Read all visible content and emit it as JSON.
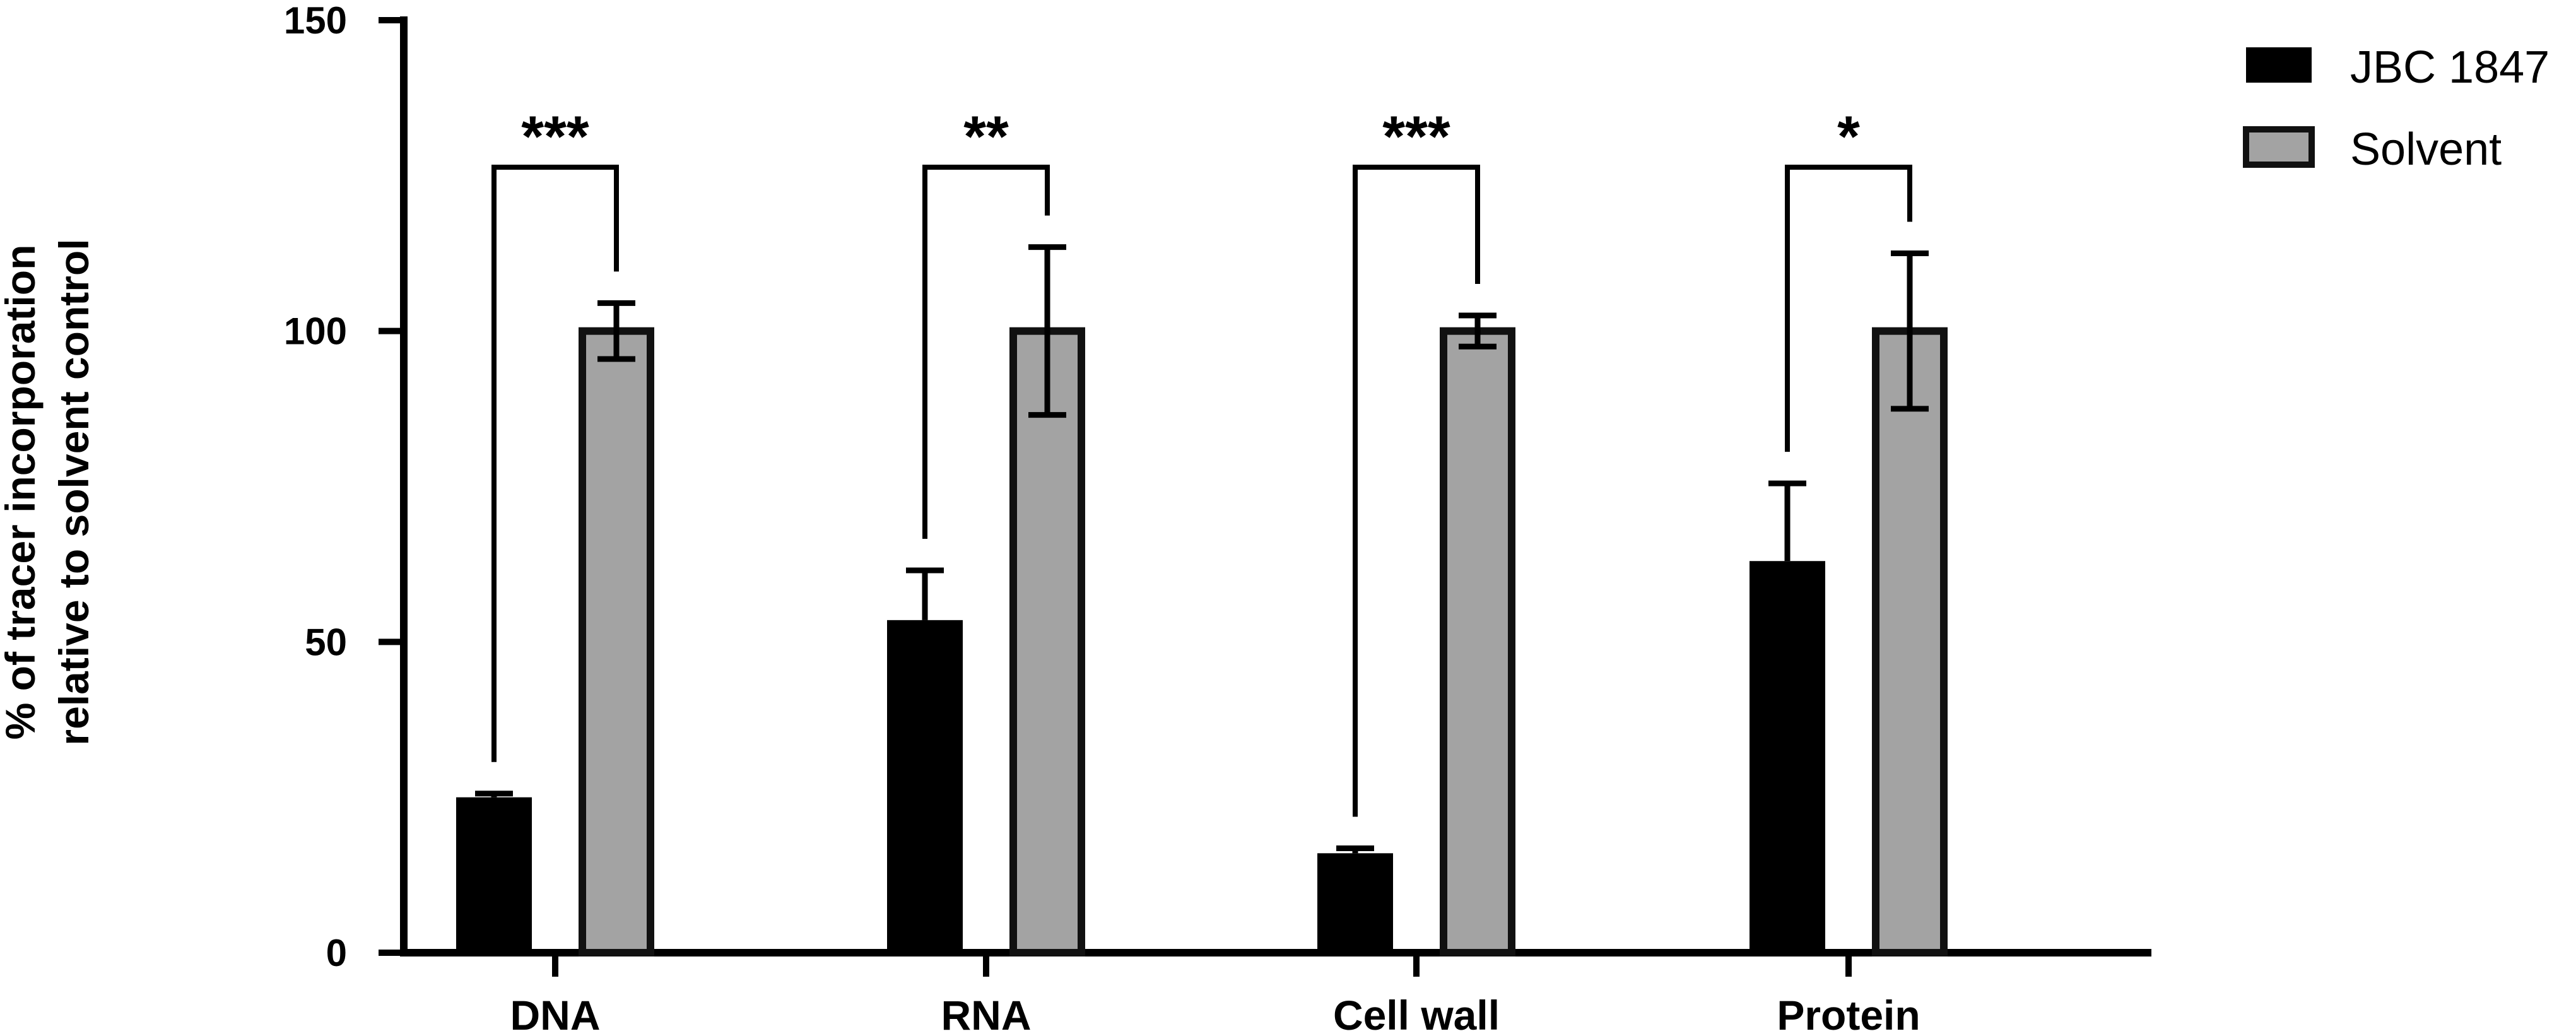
{
  "chart_data": {
    "type": "bar",
    "title": "",
    "xlabel": "",
    "ylabel_lines": [
      "% of tracer incorporation",
      "relative to solvent control"
    ],
    "ylim": [
      0,
      150
    ],
    "yticks": [
      0,
      50,
      100,
      150
    ],
    "categories": [
      "DNA",
      "RNA",
      "Cell wall",
      "Protein"
    ],
    "series": [
      {
        "name": "JBC 1847",
        "values": [
          25,
          53.5,
          16,
          63
        ],
        "errors": [
          0.6,
          8,
          0.8,
          12.5
        ],
        "color": "#000000"
      },
      {
        "name": "Solvent",
        "values": [
          100,
          100,
          100,
          100
        ],
        "errors": [
          4.5,
          13.5,
          2.5,
          12.5
        ],
        "color": "#a3a3a3"
      }
    ],
    "significance": [
      "***",
      "**",
      "***",
      "*"
    ],
    "legend_position": "top-right",
    "grid": false
  }
}
